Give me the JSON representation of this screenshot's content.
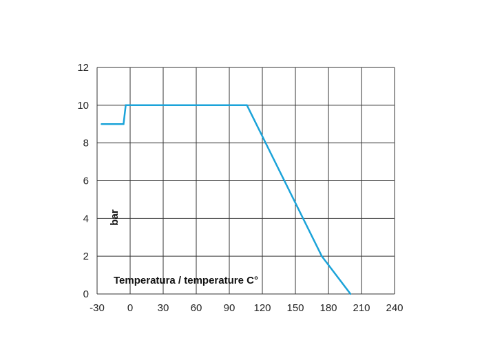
{
  "chart_data": {
    "type": "line",
    "title": "",
    "xlabel": "Temperatura / temperature C°",
    "ylabel": "bar",
    "xlim": [
      -30,
      240
    ],
    "ylim": [
      0,
      12
    ],
    "x_ticks": [
      -30,
      0,
      30,
      60,
      90,
      120,
      150,
      180,
      210,
      240
    ],
    "y_ticks": [
      0,
      2,
      4,
      6,
      8,
      10,
      12
    ],
    "grid": true,
    "series": [
      {
        "color": "#1ba3d9",
        "points": [
          {
            "x": -26,
            "y": 9
          },
          {
            "x": -6,
            "y": 9
          },
          {
            "x": -4,
            "y": 10
          },
          {
            "x": 106,
            "y": 10
          },
          {
            "x": 174,
            "y": 2
          },
          {
            "x": 200,
            "y": 0
          }
        ]
      }
    ]
  },
  "colors": {
    "line": "#1ba3d9",
    "grid": "#333333"
  }
}
